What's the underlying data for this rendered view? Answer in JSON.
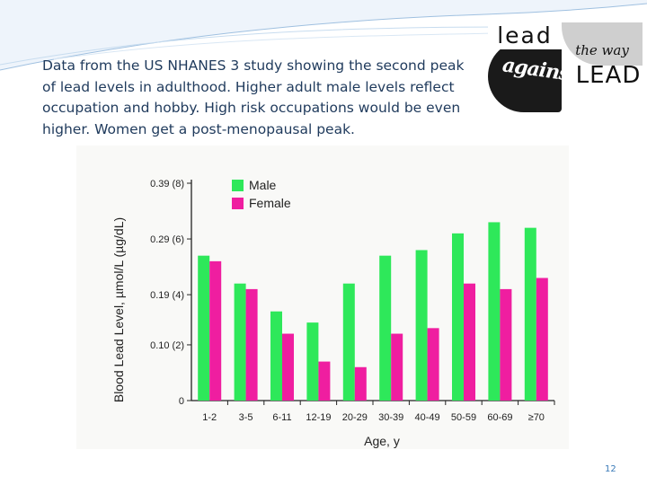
{
  "caption": "Data from the US NHANES 3 study showing the second peak of lead levels in adulthood. Higher adult male levels reflect occupation and hobby. High risk occupations would be even higher. Women get a post-menopausal peak.",
  "logo": {
    "word_lead": "lead",
    "word_the_way": "the way",
    "word_against": "against",
    "word_lead_caps": "LEAD"
  },
  "page_number": "12",
  "colors": {
    "male": "#2ee85a",
    "female": "#ef1ea0",
    "caption": "#1f3a5c"
  },
  "chart_data": {
    "type": "bar",
    "title": "",
    "xlabel": "Age, y",
    "ylabel": "Blood Lead Level, µmol/L (µg/dL)",
    "categories": [
      "1-2",
      "3-5",
      "6-11",
      "12-19",
      "20-29",
      "30-39",
      "40-49",
      "50-59",
      "60-69",
      "≥70"
    ],
    "series": [
      {
        "name": "Male",
        "color": "#2ee85a",
        "values": [
          0.26,
          0.21,
          0.16,
          0.14,
          0.21,
          0.26,
          0.27,
          0.3,
          0.32,
          0.31
        ]
      },
      {
        "name": "Female",
        "color": "#ef1ea0",
        "values": [
          0.25,
          0.2,
          0.12,
          0.07,
          0.06,
          0.12,
          0.13,
          0.21,
          0.2,
          0.22
        ]
      }
    ],
    "yticks": [
      {
        "value": 0,
        "label": "0"
      },
      {
        "value": 0.1,
        "label": "0.10 (2)"
      },
      {
        "value": 0.19,
        "label": "0.19 (4)"
      },
      {
        "value": 0.29,
        "label": "0.29 (6)"
      },
      {
        "value": 0.39,
        "label": "0.39 (8)"
      }
    ],
    "ylim": [
      0,
      0.39
    ],
    "legend_position": "top-left",
    "grid": false
  }
}
